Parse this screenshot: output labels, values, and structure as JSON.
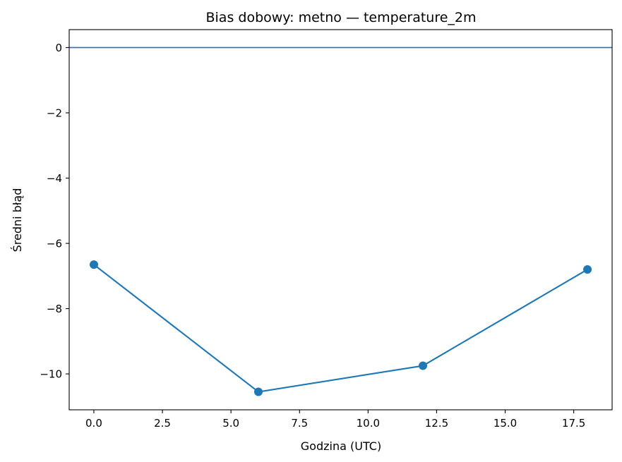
{
  "chart_data": {
    "type": "line",
    "title": "Bias dobowy: metno — temperature_2m",
    "xlabel": "Godzina (UTC)",
    "ylabel": "Średni błąd",
    "x": [
      0,
      6,
      12,
      18
    ],
    "series": [
      {
        "values": [
          -6.65,
          -10.55,
          -9.75,
          -6.8
        ],
        "color": "#1f77b4",
        "marker": "circle"
      }
    ],
    "reference_line": {
      "y": 0,
      "color": "#1f77b4"
    },
    "xlim": [
      -0.9,
      18.9
    ],
    "ylim": [
      -11.1,
      0.55
    ],
    "xticks": [
      0,
      2.5,
      5,
      7.5,
      10,
      12.5,
      15,
      17.5
    ],
    "xtick_labels": [
      "0.0",
      "2.5",
      "5.0",
      "7.5",
      "10.0",
      "12.5",
      "15.0",
      "17.5"
    ],
    "yticks": [
      0,
      -2,
      -4,
      -6,
      -8,
      -10
    ],
    "ytick_labels": [
      "0",
      "−2",
      "−4",
      "−6",
      "−8",
      "−10"
    ],
    "grid": false,
    "legend": "none"
  }
}
